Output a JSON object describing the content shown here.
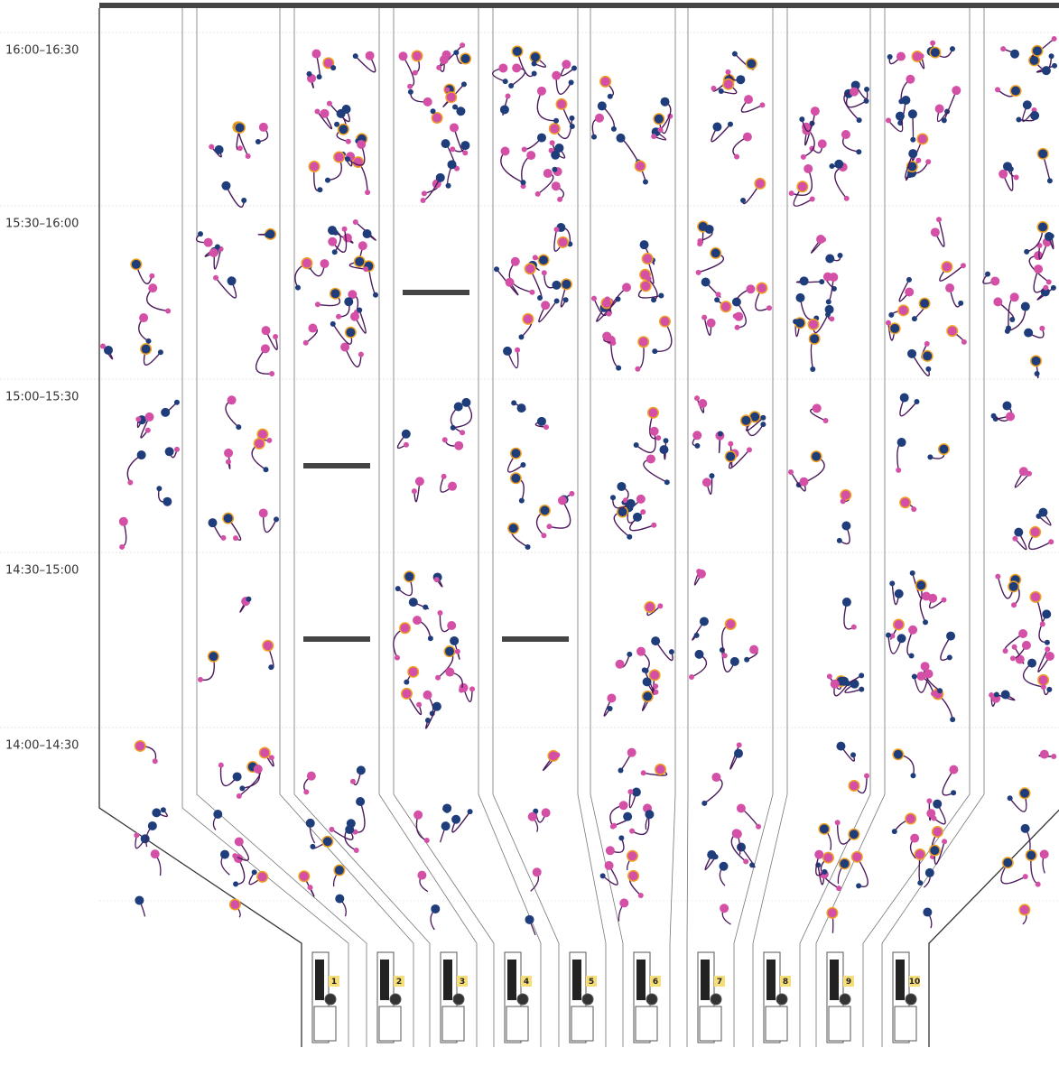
{
  "time_slots": [
    "16:00–16:30",
    "15:30–16:00",
    "15:00–15:30",
    "14:30–15:00",
    "14:00–14:30"
  ],
  "machines": [
    "1",
    "2",
    "3",
    "4",
    "5",
    "6",
    "7",
    "8",
    "9",
    "10"
  ]
}
